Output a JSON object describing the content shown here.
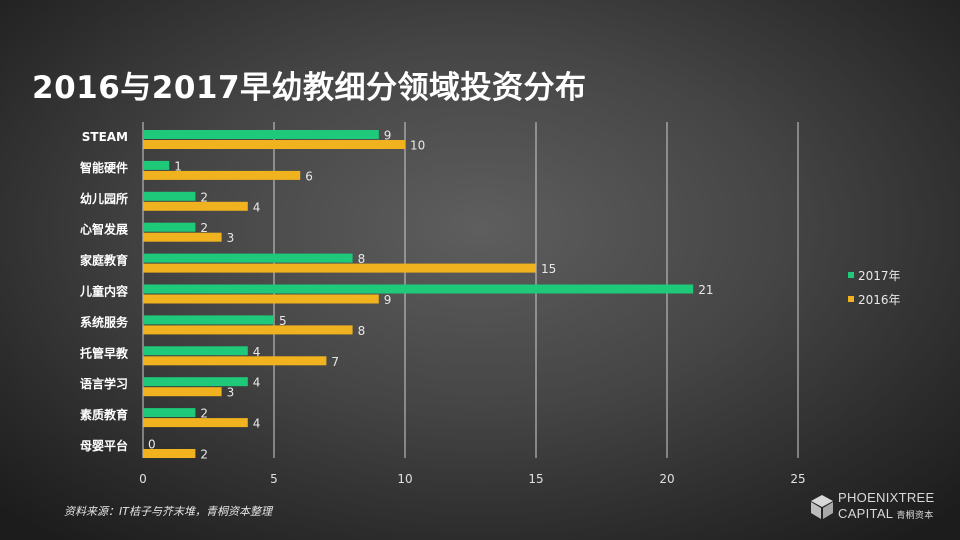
{
  "title": "2016与2017早幼教细分领域投资分布",
  "source": "资料来源：IT桔子与芥末堆，青桐资本整理",
  "logo": {
    "line1": "PHOENIXTREE",
    "line2": "CAPITAL",
    "line2_cn": "青桐资本"
  },
  "colors": {
    "s2017": "#1fc97a",
    "s2016": "#f0b21e",
    "grid": "#cfcfcf"
  },
  "chart_data": {
    "type": "bar",
    "orientation": "horizontal",
    "categories": [
      "STEAM",
      "智能硬件",
      "幼儿园所",
      "心智发展",
      "家庭教育",
      "儿童内容",
      "系统服务",
      "托管早教",
      "语言学习",
      "素质教育",
      "母婴平台"
    ],
    "series": [
      {
        "name": "2017年",
        "values": [
          9,
          1,
          2,
          2,
          8,
          21,
          5,
          4,
          4,
          2,
          0
        ]
      },
      {
        "name": "2016年",
        "values": [
          10,
          6,
          4,
          3,
          15,
          9,
          8,
          7,
          3,
          4,
          2
        ]
      }
    ],
    "xlim": [
      0,
      25
    ],
    "xticks": [
      0,
      5,
      10,
      15,
      20,
      25
    ],
    "grid": true,
    "legend_position": "right"
  }
}
